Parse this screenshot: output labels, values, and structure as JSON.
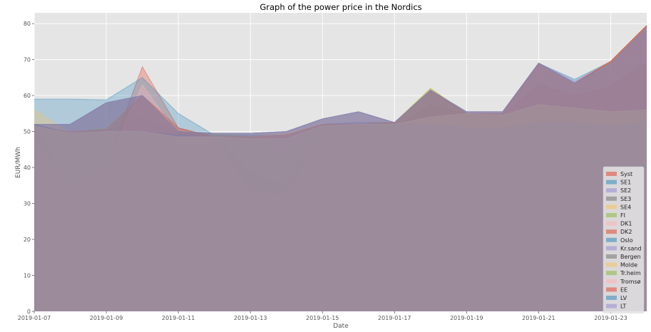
{
  "chart_data": {
    "type": "area",
    "title": "Graph of the power price in the Nordics",
    "xlabel": "Date",
    "ylabel": "EUR/MWh",
    "x": [
      "2019-01-07",
      "2019-01-08",
      "2019-01-09",
      "2019-01-10",
      "2019-01-11",
      "2019-01-12",
      "2019-01-13",
      "2019-01-14",
      "2019-01-15",
      "2019-01-16",
      "2019-01-17",
      "2019-01-18",
      "2019-01-19",
      "2019-01-20",
      "2019-01-21",
      "2019-01-22",
      "2019-01-23",
      "2019-01-24"
    ],
    "xticks": [
      "2019-01-07",
      "2019-01-09",
      "2019-01-11",
      "2019-01-13",
      "2019-01-15",
      "2019-01-17",
      "2019-01-19",
      "2019-01-21",
      "2019-01-23"
    ],
    "ylim": [
      0,
      83
    ],
    "yticks": [
      0,
      10,
      20,
      30,
      40,
      50,
      60,
      70,
      80
    ],
    "grid": true,
    "legend_position": "lower-right",
    "series": [
      {
        "name": "Syst",
        "color": "#e24a33",
        "values": [
          52.0,
          34.5,
          41.0,
          68.0,
          51.0,
          48.5,
          38.5,
          35.0,
          50.5,
          52.0,
          51.0,
          57.5,
          55.0,
          54.5,
          63.0,
          60.0,
          62.5,
          69.0
        ]
      },
      {
        "name": "SE1",
        "color": "#348abd",
        "values": [
          59.0,
          59.0,
          58.8,
          65.0,
          55.0,
          49.0,
          49.0,
          49.0,
          52.0,
          52.5,
          52.5,
          61.5,
          55.0,
          55.0,
          69.0,
          64.5,
          69.5,
          79.5
        ]
      },
      {
        "name": "SE2",
        "color": "#988ed5",
        "values": [
          52.0,
          49.5,
          50.5,
          54.0,
          50.0,
          49.0,
          48.5,
          48.5,
          52.0,
          52.5,
          52.5,
          61.5,
          55.0,
          55.0,
          69.0,
          64.0,
          69.5,
          79.5
        ]
      },
      {
        "name": "SE3",
        "color": "#777777",
        "values": [
          52.0,
          52.0,
          58.0,
          60.0,
          50.0,
          49.5,
          49.5,
          50.0,
          53.5,
          55.5,
          52.5,
          61.5,
          55.5,
          55.5,
          69.0,
          63.5,
          68.0,
          79.0
        ]
      },
      {
        "name": "SE4",
        "color": "#fbc15e",
        "values": [
          56.0,
          49.5,
          50.0,
          50.0,
          48.5,
          48.5,
          48.5,
          49.5,
          52.0,
          52.0,
          52.5,
          62.0,
          55.0,
          55.0,
          69.0,
          63.5,
          69.5,
          79.5
        ]
      },
      {
        "name": "FI",
        "color": "#8eba42",
        "values": [
          52.0,
          49.5,
          51.0,
          59.5,
          50.0,
          49.5,
          48.5,
          44.0,
          51.5,
          52.0,
          52.5,
          62.0,
          55.0,
          54.5,
          57.5,
          56.5,
          55.5,
          56.0
        ]
      },
      {
        "name": "DK1",
        "color": "#ffb5b8",
        "values": [
          48.0,
          35.0,
          40.5,
          63.0,
          49.0,
          48.5,
          33.0,
          32.5,
          50.5,
          52.0,
          52.0,
          52.0,
          51.0,
          51.0,
          52.5,
          52.5,
          51.5,
          52.5
        ]
      },
      {
        "name": "DK2",
        "color": "#e24a33",
        "values": [
          51.0,
          50.0,
          50.5,
          60.0,
          51.0,
          48.5,
          48.5,
          49.0,
          52.0,
          52.0,
          52.5,
          61.5,
          55.0,
          55.0,
          69.0,
          63.5,
          69.5,
          79.5
        ]
      },
      {
        "name": "Oslo",
        "color": "#348abd",
        "values": [
          52.0,
          49.5,
          50.0,
          50.0,
          49.0,
          48.5,
          48.0,
          48.0,
          51.5,
          52.0,
          52.0,
          52.0,
          51.0,
          51.0,
          52.5,
          52.5,
          51.5,
          52.5
        ]
      },
      {
        "name": "Kr.sand",
        "color": "#988ed5",
        "values": [
          52.0,
          49.5,
          50.0,
          50.0,
          49.0,
          48.5,
          48.0,
          48.0,
          51.5,
          52.0,
          52.0,
          52.0,
          51.0,
          51.0,
          52.5,
          52.5,
          51.5,
          52.5
        ]
      },
      {
        "name": "Bergen",
        "color": "#777777",
        "values": [
          52.0,
          49.5,
          50.0,
          50.0,
          49.0,
          48.5,
          48.0,
          48.0,
          51.5,
          52.0,
          52.0,
          52.0,
          51.0,
          51.0,
          52.5,
          52.5,
          51.5,
          52.5
        ]
      },
      {
        "name": "Molde",
        "color": "#fbc15e",
        "values": [
          51.5,
          49.5,
          50.0,
          50.0,
          48.5,
          48.5,
          48.0,
          48.0,
          51.5,
          52.0,
          52.0,
          54.0,
          55.0,
          54.5,
          57.5,
          56.5,
          55.5,
          56.0
        ]
      },
      {
        "name": "Tr.heim",
        "color": "#8eba42",
        "values": [
          51.5,
          49.5,
          50.0,
          50.0,
          48.5,
          48.5,
          48.0,
          48.0,
          51.5,
          52.0,
          52.0,
          54.0,
          55.0,
          54.5,
          57.5,
          56.5,
          55.5,
          56.0
        ]
      },
      {
        "name": "Tromsø",
        "color": "#ffb5b8",
        "values": [
          51.5,
          49.5,
          50.0,
          50.0,
          48.5,
          48.5,
          48.0,
          48.0,
          51.5,
          52.0,
          52.0,
          54.0,
          55.0,
          54.5,
          57.5,
          56.5,
          55.5,
          56.0
        ]
      },
      {
        "name": "EE",
        "color": "#e24a33",
        "values": [
          52.0,
          52.0,
          58.0,
          60.0,
          50.0,
          49.5,
          49.5,
          50.0,
          53.5,
          55.5,
          52.5,
          61.5,
          55.5,
          55.5,
          69.0,
          63.5,
          69.5,
          79.5
        ]
      },
      {
        "name": "LV",
        "color": "#348abd",
        "values": [
          52.0,
          52.0,
          58.0,
          60.0,
          50.0,
          49.5,
          49.5,
          50.0,
          53.5,
          55.5,
          52.5,
          61.5,
          55.5,
          55.5,
          69.0,
          63.5,
          69.0,
          79.0
        ]
      },
      {
        "name": "LT",
        "color": "#988ed5",
        "values": [
          52.0,
          52.0,
          58.0,
          60.0,
          50.0,
          49.5,
          49.5,
          50.0,
          53.5,
          55.5,
          52.5,
          61.5,
          55.5,
          55.5,
          69.0,
          63.5,
          68.5,
          79.0
        ]
      }
    ]
  },
  "colors": {
    "plot_background": "#e5e5e5",
    "grid": "#ffffff",
    "legend_background": "#e5e5e5"
  }
}
